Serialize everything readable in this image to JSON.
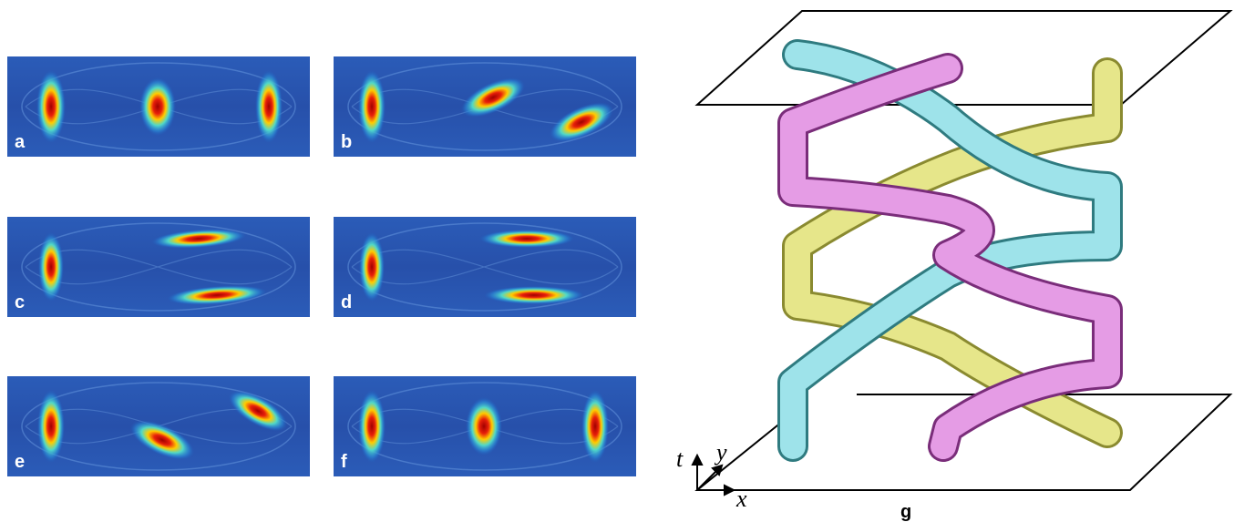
{
  "panels": [
    {
      "label": "a"
    },
    {
      "label": "b"
    },
    {
      "label": "c"
    },
    {
      "label": "d"
    },
    {
      "label": "e"
    },
    {
      "label": "f"
    }
  ],
  "braid": {
    "label": "g",
    "axis_labels": [
      "t",
      "y",
      "x"
    ]
  }
}
